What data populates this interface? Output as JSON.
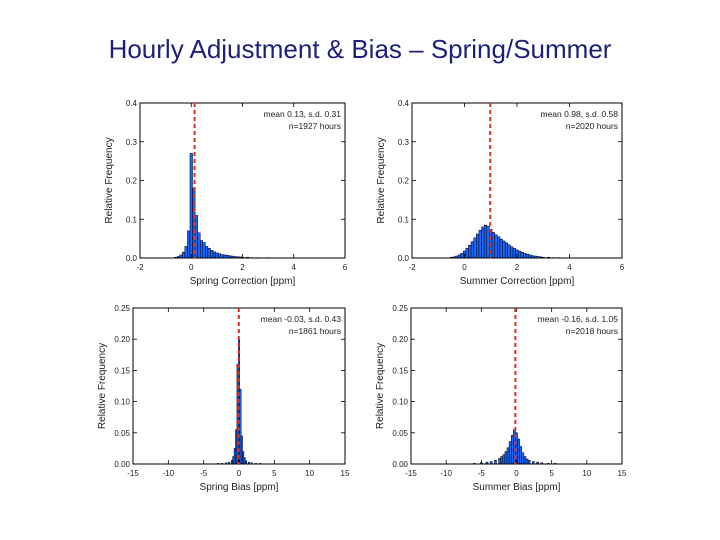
{
  "page_title": "Hourly Adjustment & Bias – Spring/Summer",
  "chart_data": [
    {
      "type": "bar",
      "xlabel": "Spring Correction [ppm]",
      "ylabel": "Relative Frequency",
      "xlim": [
        -2,
        6
      ],
      "ylim": [
        0,
        0.4
      ],
      "xticks": [
        -2,
        0,
        2,
        4,
        6
      ],
      "yticks": [
        0.0,
        0.1,
        0.2,
        0.3,
        0.4
      ],
      "ytick_labels": [
        "0.0",
        "0.1",
        "0.2",
        "0.3",
        "0.4"
      ],
      "annotations": [
        "mean 0.13, s.d. 0.31",
        "n=1927 hours"
      ],
      "mean_line": 0.13,
      "bin_width": 0.1,
      "bins": [
        {
          "x": -0.6,
          "y": 0.002
        },
        {
          "x": -0.5,
          "y": 0.004
        },
        {
          "x": -0.4,
          "y": 0.008
        },
        {
          "x": -0.3,
          "y": 0.015
        },
        {
          "x": -0.2,
          "y": 0.03
        },
        {
          "x": -0.1,
          "y": 0.07
        },
        {
          "x": 0.0,
          "y": 0.27
        },
        {
          "x": 0.1,
          "y": 0.18
        },
        {
          "x": 0.2,
          "y": 0.11
        },
        {
          "x": 0.3,
          "y": 0.065
        },
        {
          "x": 0.4,
          "y": 0.045
        },
        {
          "x": 0.5,
          "y": 0.04
        },
        {
          "x": 0.6,
          "y": 0.03
        },
        {
          "x": 0.7,
          "y": 0.025
        },
        {
          "x": 0.8,
          "y": 0.02
        },
        {
          "x": 0.9,
          "y": 0.016
        },
        {
          "x": 1.0,
          "y": 0.013
        },
        {
          "x": 1.1,
          "y": 0.011
        },
        {
          "x": 1.2,
          "y": 0.009
        },
        {
          "x": 1.3,
          "y": 0.008
        },
        {
          "x": 1.4,
          "y": 0.007
        },
        {
          "x": 1.5,
          "y": 0.006
        },
        {
          "x": 1.6,
          "y": 0.005
        },
        {
          "x": 1.7,
          "y": 0.004
        },
        {
          "x": 1.8,
          "y": 0.003
        },
        {
          "x": 1.9,
          "y": 0.003
        },
        {
          "x": 2.0,
          "y": 0.002
        },
        {
          "x": 2.2,
          "y": 0.002
        },
        {
          "x": 2.4,
          "y": 0.001
        },
        {
          "x": 2.6,
          "y": 0.001
        },
        {
          "x": 3.0,
          "y": 0.001
        }
      ]
    },
    {
      "type": "bar",
      "xlabel": "Summer Correction [ppm]",
      "ylabel": "Relative Frequency",
      "xlim": [
        -2,
        6
      ],
      "ylim": [
        0,
        0.4
      ],
      "xticks": [
        -2,
        0,
        2,
        4,
        6
      ],
      "yticks": [
        0.0,
        0.1,
        0.2,
        0.3,
        0.4
      ],
      "ytick_labels": [
        "0.0",
        "0.1",
        "0.2",
        "0.3",
        "0.4"
      ],
      "annotations": [
        "mean 0.98, s.d. 0.58",
        "n=2020 hours"
      ],
      "mean_line": 0.98,
      "bin_width": 0.1,
      "bins": [
        {
          "x": -0.5,
          "y": 0.002
        },
        {
          "x": -0.4,
          "y": 0.003
        },
        {
          "x": -0.3,
          "y": 0.005
        },
        {
          "x": -0.2,
          "y": 0.008
        },
        {
          "x": -0.1,
          "y": 0.012
        },
        {
          "x": 0.0,
          "y": 0.018
        },
        {
          "x": 0.1,
          "y": 0.025
        },
        {
          "x": 0.2,
          "y": 0.033
        },
        {
          "x": 0.3,
          "y": 0.042
        },
        {
          "x": 0.4,
          "y": 0.052
        },
        {
          "x": 0.5,
          "y": 0.062
        },
        {
          "x": 0.6,
          "y": 0.072
        },
        {
          "x": 0.7,
          "y": 0.08
        },
        {
          "x": 0.8,
          "y": 0.085
        },
        {
          "x": 0.9,
          "y": 0.082
        },
        {
          "x": 1.0,
          "y": 0.074
        },
        {
          "x": 1.1,
          "y": 0.066
        },
        {
          "x": 1.2,
          "y": 0.06
        },
        {
          "x": 1.3,
          "y": 0.055
        },
        {
          "x": 1.4,
          "y": 0.049
        },
        {
          "x": 1.5,
          "y": 0.044
        },
        {
          "x": 1.6,
          "y": 0.039
        },
        {
          "x": 1.7,
          "y": 0.034
        },
        {
          "x": 1.8,
          "y": 0.029
        },
        {
          "x": 1.9,
          "y": 0.025
        },
        {
          "x": 2.0,
          "y": 0.021
        },
        {
          "x": 2.1,
          "y": 0.018
        },
        {
          "x": 2.2,
          "y": 0.015
        },
        {
          "x": 2.3,
          "y": 0.012
        },
        {
          "x": 2.4,
          "y": 0.01
        },
        {
          "x": 2.5,
          "y": 0.008
        },
        {
          "x": 2.6,
          "y": 0.006
        },
        {
          "x": 2.7,
          "y": 0.005
        },
        {
          "x": 2.8,
          "y": 0.004
        },
        {
          "x": 2.9,
          "y": 0.003
        },
        {
          "x": 3.0,
          "y": 0.002
        },
        {
          "x": 3.2,
          "y": 0.002
        },
        {
          "x": 3.4,
          "y": 0.001
        },
        {
          "x": 3.6,
          "y": 0.001
        }
      ]
    },
    {
      "type": "bar",
      "xlabel": "Spring Bias [ppm]",
      "ylabel": "Relative Frequency",
      "xlim": [
        -15,
        15
      ],
      "ylim": [
        0,
        0.25
      ],
      "xticks": [
        -15,
        -10,
        -5,
        0,
        5,
        10,
        15
      ],
      "yticks": [
        0.0,
        0.05,
        0.1,
        0.15,
        0.2,
        0.25
      ],
      "ytick_labels": [
        "0.00",
        "0.05",
        "0.10",
        "0.15",
        "0.20",
        "0.25"
      ],
      "annotations": [
        "mean -0.03, s.d. 0.43",
        "n=1861 hours"
      ],
      "mean_line": -0.03,
      "bin_width": 0.2,
      "bins": [
        {
          "x": -3.0,
          "y": 0.001
        },
        {
          "x": -2.4,
          "y": 0.001
        },
        {
          "x": -1.8,
          "y": 0.002
        },
        {
          "x": -1.4,
          "y": 0.003
        },
        {
          "x": -1.0,
          "y": 0.006
        },
        {
          "x": -0.8,
          "y": 0.012
        },
        {
          "x": -0.6,
          "y": 0.025
        },
        {
          "x": -0.4,
          "y": 0.055
        },
        {
          "x": -0.2,
          "y": 0.16
        },
        {
          "x": 0.0,
          "y": 0.2
        },
        {
          "x": 0.2,
          "y": 0.12
        },
        {
          "x": 0.4,
          "y": 0.045
        },
        {
          "x": 0.6,
          "y": 0.02
        },
        {
          "x": 0.8,
          "y": 0.01
        },
        {
          "x": 1.0,
          "y": 0.005
        },
        {
          "x": 1.4,
          "y": 0.003
        },
        {
          "x": 1.8,
          "y": 0.002
        },
        {
          "x": 2.4,
          "y": 0.001
        },
        {
          "x": 3.0,
          "y": 0.001
        }
      ]
    },
    {
      "type": "bar",
      "xlabel": "Summer Bias [ppm]",
      "ylabel": "Relative Frequency",
      "xlim": [
        -15,
        15
      ],
      "ylim": [
        0,
        0.25
      ],
      "xticks": [
        -15,
        -10,
        -5,
        0,
        5,
        10,
        15
      ],
      "yticks": [
        0.0,
        0.05,
        0.1,
        0.15,
        0.2,
        0.25
      ],
      "ytick_labels": [
        "0.00",
        "0.05",
        "0.10",
        "0.15",
        "0.20",
        "0.25"
      ],
      "annotations": [
        "mean -0.16, s.d. 1.05",
        "n=2018 hours"
      ],
      "mean_line": -0.16,
      "bin_width": 0.3,
      "bins": [
        {
          "x": -6.0,
          "y": 0.001
        },
        {
          "x": -5.0,
          "y": 0.002
        },
        {
          "x": -4.2,
          "y": 0.003
        },
        {
          "x": -3.6,
          "y": 0.004
        },
        {
          "x": -3.0,
          "y": 0.006
        },
        {
          "x": -2.4,
          "y": 0.009
        },
        {
          "x": -2.1,
          "y": 0.012
        },
        {
          "x": -1.8,
          "y": 0.015
        },
        {
          "x": -1.5,
          "y": 0.02
        },
        {
          "x": -1.2,
          "y": 0.026
        },
        {
          "x": -0.9,
          "y": 0.036
        },
        {
          "x": -0.6,
          "y": 0.046
        },
        {
          "x": -0.3,
          "y": 0.055
        },
        {
          "x": 0.0,
          "y": 0.05
        },
        {
          "x": 0.3,
          "y": 0.04
        },
        {
          "x": 0.6,
          "y": 0.028
        },
        {
          "x": 0.9,
          "y": 0.018
        },
        {
          "x": 1.2,
          "y": 0.012
        },
        {
          "x": 1.5,
          "y": 0.008
        },
        {
          "x": 1.8,
          "y": 0.006
        },
        {
          "x": 2.4,
          "y": 0.004
        },
        {
          "x": 3.0,
          "y": 0.003
        },
        {
          "x": 3.6,
          "y": 0.002
        },
        {
          "x": 4.5,
          "y": 0.001
        },
        {
          "x": 5.5,
          "y": 0.001
        }
      ]
    }
  ]
}
